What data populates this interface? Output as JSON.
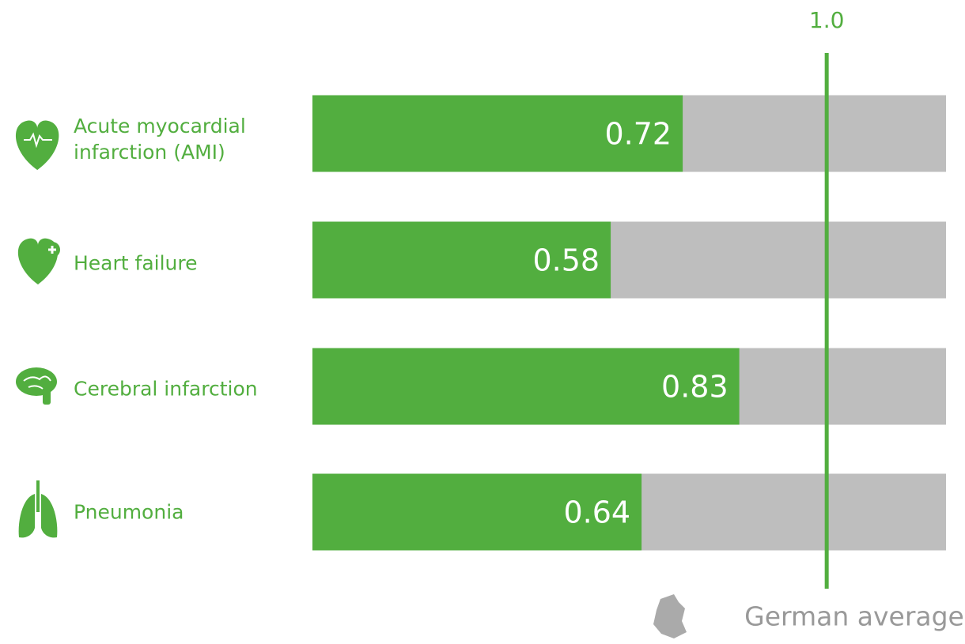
{
  "chart_data": {
    "type": "bar",
    "orientation": "horizontal",
    "categories": [
      "Acute myocardial infarction (AMI)",
      "Heart failure",
      "Cerebral infarction",
      "Pneumonia"
    ],
    "values": [
      0.72,
      0.58,
      0.83,
      0.64
    ],
    "color": "#52ae3f",
    "track_color": "#bebebe",
    "xlim": [
      0,
      1.232
    ],
    "xticks": [
      {
        "value": 1,
        "label": "1.0"
      }
    ],
    "reference_label": "German average"
  }
}
